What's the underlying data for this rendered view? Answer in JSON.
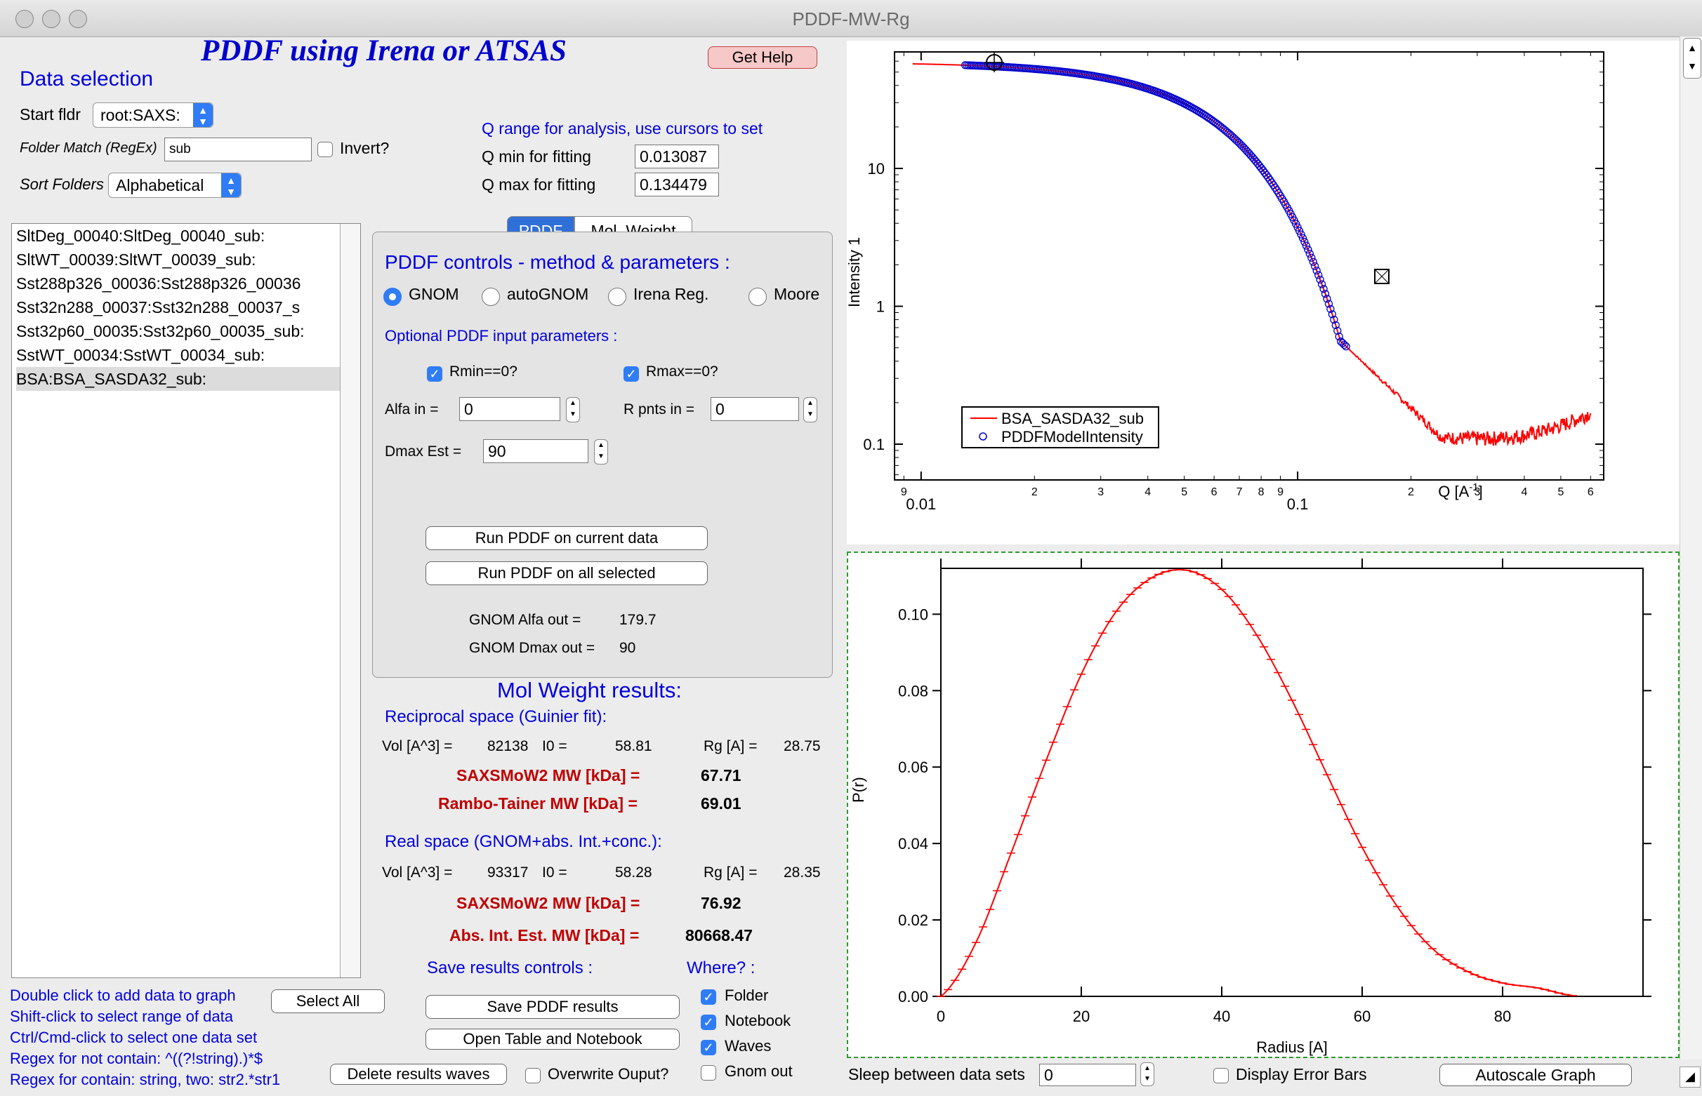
{
  "window": {
    "title": "PDDF-MW-Rg"
  },
  "header": {
    "main_title": "PDDF using Irena or ATSAS",
    "help_button": "Get Help"
  },
  "data_selection": {
    "title": "Data selection",
    "start_folder_label": "Start fldr",
    "start_folder_value": "root:SAXS:",
    "folder_match_label": "Folder Match (RegEx)",
    "folder_match_value": "sub",
    "invert_label": "Invert?",
    "invert_checked": false,
    "sort_label": "Sort Folders",
    "sort_value": "Alphabetical"
  },
  "q_range": {
    "title": "Q range for analysis, use cursors to set",
    "qmin_label": "Q min for fitting",
    "qmin_value": "0.013087",
    "qmax_label": "Q max for fitting",
    "qmax_value": "0.134479"
  },
  "data_list": [
    "SltDeg_00040:SltDeg_00040_sub:",
    "SltWT_00039:SltWT_00039_sub:",
    "Sst288p326_00036:Sst288p326_00036",
    "Sst32n288_00037:Sst32n288_00037_s",
    "Sst32p60_00035:Sst32p60_00035_sub:",
    "SstWT_00034:SstWT_00034_sub:",
    "BSA:BSA_SASDA32_sub:"
  ],
  "tabs": [
    "PDDF",
    "Mol. Weight"
  ],
  "pddf": {
    "title": "PDDF controls - method & parameters :",
    "methods": [
      "GNOM",
      "autoGNOM",
      "Irena Reg.",
      "Moore"
    ],
    "selected_method": "GNOM",
    "optional_title": "Optional PDDF input parameters :",
    "rmin_label": "Rmin==0?",
    "rmax_label": "Rmax==0?",
    "alfa_label": "Alfa in =",
    "alfa_value": "0",
    "rpnts_label": "R pnts in =",
    "rpnts_value": "0",
    "dmax_label": "Dmax Est =",
    "dmax_value": "90",
    "run_current": "Run PDDF on current data",
    "run_all": "Run PDDF on all selected",
    "gnom_alfa_label": "GNOM Alfa out =",
    "gnom_alfa_value": "179.7",
    "gnom_dmax_label": "GNOM Dmax out =",
    "gnom_dmax_value": "90"
  },
  "mw": {
    "title": "Mol Weight results:",
    "recip_title": "Reciprocal space (Guinier fit):",
    "vol_label": "Vol [A^3] =",
    "i0_label": "I0 =",
    "rg_label": "Rg [A] =",
    "recip_vol": "82138",
    "recip_i0": "58.81",
    "recip_rg": "28.75",
    "saxsmow_label": "SAXSMoW2 MW [kDa]   =",
    "recip_saxsmow": "67.71",
    "rambo_label": "Rambo-Tainer MW [kDa]   =",
    "recip_rambo": "69.01",
    "real_title": "Real space (GNOM+abs. Int.+conc.):",
    "real_vol": "93317",
    "real_i0": "58.28",
    "real_rg": "28.35",
    "real_saxsmow": "76.92",
    "abs_label": "Abs. Int. Est. MW [kDa]   =",
    "real_abs": "80668.47"
  },
  "save": {
    "title": "Save results controls :",
    "where_title": "Where? :",
    "save_button": "Save PDDF results",
    "open_button": "Open Table and Notebook",
    "folder_label": "Folder",
    "notebook_label": "Notebook",
    "waves_label": "Waves",
    "gnom_label": "Gnom out",
    "delete_button": "Delete results waves",
    "overwrite_label": "Overwrite Ouput?"
  },
  "help_lines": [
    "Double click to add data to graph",
    "Shift-click to select range of data",
    "Ctrl/Cmd-click to select one data set",
    "Regex for not contain: ^((?!string).)*$",
    "Regex for contain:  string, two: str2.*str1"
  ],
  "select_all": "Select All",
  "bottom": {
    "sleep_label": "Sleep between data sets",
    "sleep_value": "0",
    "error_bars_label": "Display Error Bars",
    "autoscale_button": "Autoscale Graph"
  },
  "graph_top": {
    "ylabel": "Intensity 1",
    "xlabel_main": "Q [A",
    "xlabel_sup": "-1",
    "xlabel_end": "]",
    "legend": [
      "BSA_SASDA32_sub",
      "PDDFModelIntensity"
    ],
    "y_ticks": [
      "10",
      "1",
      "0.1"
    ],
    "x_major_ticks": [
      "0.01",
      "0.1"
    ],
    "x_minor_ticks": [
      "9",
      "2",
      "3",
      "4",
      "5",
      "6",
      "7",
      "8",
      "9",
      "2",
      "3",
      "4",
      "5",
      "6"
    ],
    "colors": {
      "data": "#ff0000",
      "model": "#0000cc"
    }
  },
  "chart_data": {
    "type": "line",
    "xlabel": "Radius [A]",
    "ylabel": "P(r)",
    "xlim": [
      0,
      90
    ],
    "ylim": [
      0,
      0.112
    ],
    "x_ticks": [
      "0",
      "20",
      "40",
      "60",
      "80"
    ],
    "y_ticks": [
      "0.00",
      "0.02",
      "0.04",
      "0.06",
      "0.08",
      "0.10"
    ],
    "series": [
      {
        "x": [
          0,
          5,
          10,
          15,
          20,
          25,
          30,
          35,
          40,
          45,
          50,
          55,
          60,
          65,
          70,
          75,
          80,
          85,
          90
        ],
        "y": [
          0,
          0.0141,
          0.0375,
          0.0618,
          0.0843,
          0.1008,
          0.1095,
          0.1115,
          0.1065,
          0.0945,
          0.0775,
          0.058,
          0.039,
          0.0235,
          0.0125,
          0.0065,
          0.0035,
          0.0022,
          0.0002
        ]
      }
    ],
    "color": "#ff0000"
  }
}
